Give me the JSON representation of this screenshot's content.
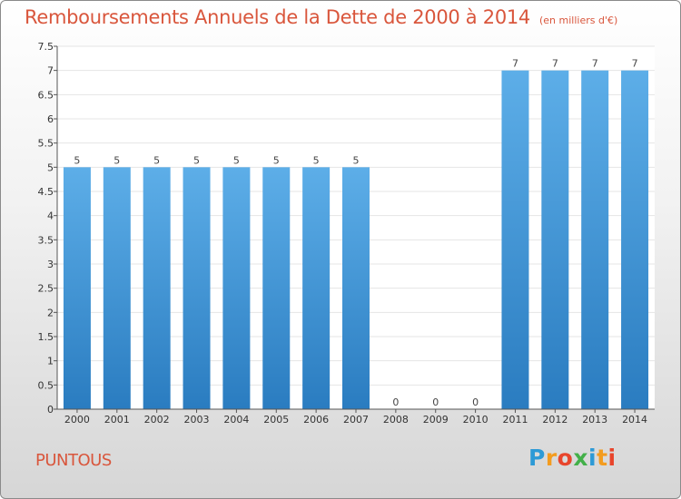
{
  "chart_data": {
    "type": "bar",
    "title": "Remboursements Annuels de la Dette de 2000 à 2014",
    "subtitle": "(en milliers d'€)",
    "categories": [
      "2000",
      "2001",
      "2002",
      "2003",
      "2004",
      "2005",
      "2006",
      "2007",
      "2008",
      "2009",
      "2010",
      "2011",
      "2012",
      "2013",
      "2014"
    ],
    "values": [
      5,
      5,
      5,
      5,
      5,
      5,
      5,
      5,
      0,
      0,
      0,
      7,
      7,
      7,
      7
    ],
    "value_labels": [
      "5",
      "5",
      "5",
      "5",
      "5",
      "5",
      "5",
      "5",
      "0",
      "0",
      "0",
      "7",
      "7",
      "7",
      "7"
    ],
    "ylim": [
      0,
      7.5
    ],
    "yticks": [
      0,
      0.5,
      1,
      1.5,
      2,
      2.5,
      3,
      3.5,
      4,
      4.5,
      5,
      5.5,
      6,
      6.5,
      7,
      7.5
    ],
    "ytick_labels": [
      "0",
      "0.5",
      "1",
      "1.5",
      "2",
      "2.5",
      "3",
      "3.5",
      "4",
      "4.5",
      "5",
      "5.5",
      "6",
      "6.5",
      "7",
      "7.5"
    ],
    "xlabel": "",
    "ylabel": "",
    "grid": true,
    "colors": {
      "bar_top": "#5daee8",
      "bar_bottom": "#2a7cc0",
      "grid": "#e4e4e4",
      "axis": "#555555"
    }
  },
  "footer": {
    "place": "PUNTOUS",
    "logo_letters": [
      "P",
      "r",
      "o",
      "x",
      "i",
      "t",
      "i"
    ],
    "logo_colors": [
      "#2d9ad6",
      "#f39c1f",
      "#e8452c",
      "#43b049",
      "#2d9ad6",
      "#f39c1f",
      "#e8452c"
    ]
  }
}
